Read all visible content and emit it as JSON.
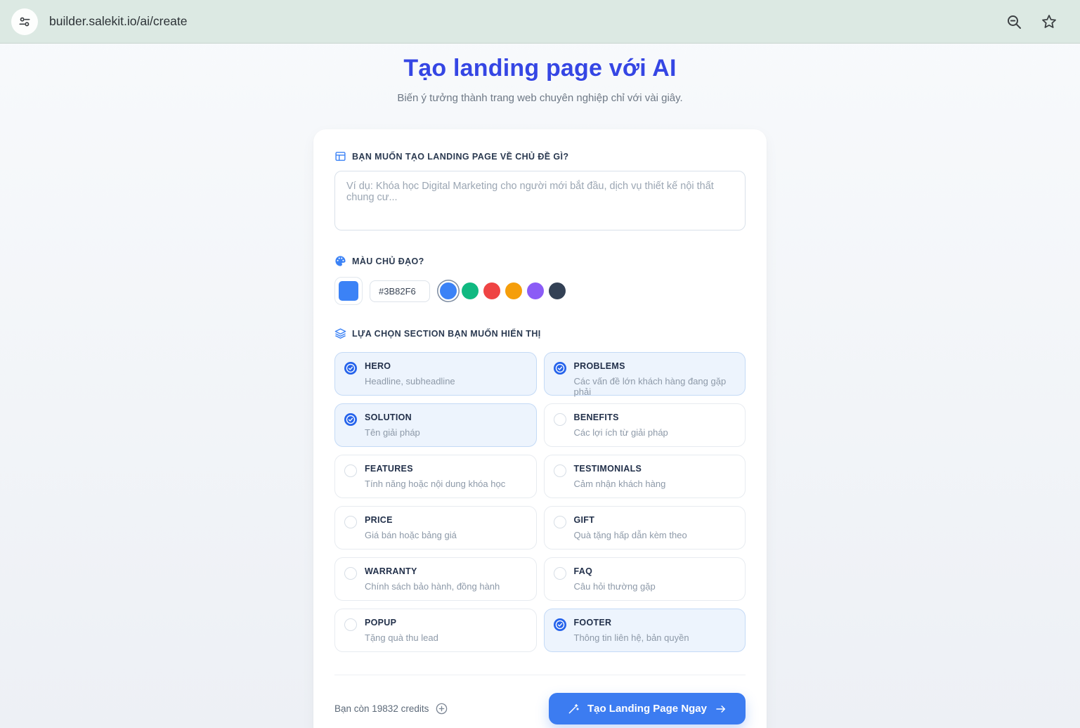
{
  "browser": {
    "url": "builder.salekit.io/ai/create",
    "icons": [
      "tune-icon",
      "zoom-out-icon",
      "bookmark-star-icon"
    ]
  },
  "header": {
    "title": "Tạo landing page với AI",
    "subtitle": "Biến ý tưởng thành trang web chuyên nghiệp chỉ với vài giây."
  },
  "form": {
    "topic": {
      "label": "BẠN MUỐN TẠO LANDING PAGE VỀ CHỦ ĐỀ GÌ?",
      "value": "",
      "placeholder": "Ví dụ: Khóa học Digital Marketing cho người mới bắt đầu, dịch vụ thiết kế nội thất chung cư..."
    },
    "color": {
      "label": "MÀU CHỦ ĐẠO?",
      "value": "#3B82F6",
      "selected_index": 0,
      "presets": [
        "#3B82F6",
        "#10B981",
        "#EF4444",
        "#F59E0B",
        "#8B5CF6",
        "#334155"
      ]
    },
    "sections": {
      "label": "LỰA CHỌN SECTION BẠN MUỐN HIỂN THỊ",
      "items": [
        {
          "name": "HERO",
          "desc": "Headline, subheadline",
          "checked": true
        },
        {
          "name": "PROBLEMS",
          "desc": "Các vấn đề lớn khách hàng đang gặp phải",
          "checked": true
        },
        {
          "name": "SOLUTION",
          "desc": "Tên giải pháp",
          "checked": true
        },
        {
          "name": "BENEFITS",
          "desc": "Các lợi ích từ giải pháp",
          "checked": false
        },
        {
          "name": "FEATURES",
          "desc": "Tính năng hoặc nội dung khóa học",
          "checked": false
        },
        {
          "name": "TESTIMONIALS",
          "desc": "Cảm nhận khách hàng",
          "checked": false
        },
        {
          "name": "PRICE",
          "desc": "Giá bán hoặc bảng giá",
          "checked": false
        },
        {
          "name": "GIFT",
          "desc": "Quà tặng hấp dẫn kèm theo",
          "checked": false
        },
        {
          "name": "WARRANTY",
          "desc": "Chính sách bảo hành, đồng hành",
          "checked": false
        },
        {
          "name": "FAQ",
          "desc": "Câu hỏi thường gặp",
          "checked": false
        },
        {
          "name": "POPUP",
          "desc": "Tặng quà thu lead",
          "checked": false
        },
        {
          "name": "FOOTER",
          "desc": "Thông tin liên hệ, bản quyền",
          "checked": true
        }
      ]
    },
    "footer": {
      "credits_text": "Bạn còn 19832 credits",
      "submit_label": "Tạo Landing Page Ngay"
    }
  },
  "colors": {
    "accent_blue": "#3B82F6",
    "title_blue": "#3546E4",
    "checked_card_bg": "#EDF4FD",
    "checked_card_border": "#C4DAF6",
    "browser_bar_bg": "#DCE9E3",
    "button_bg": "#3C7CF1"
  }
}
